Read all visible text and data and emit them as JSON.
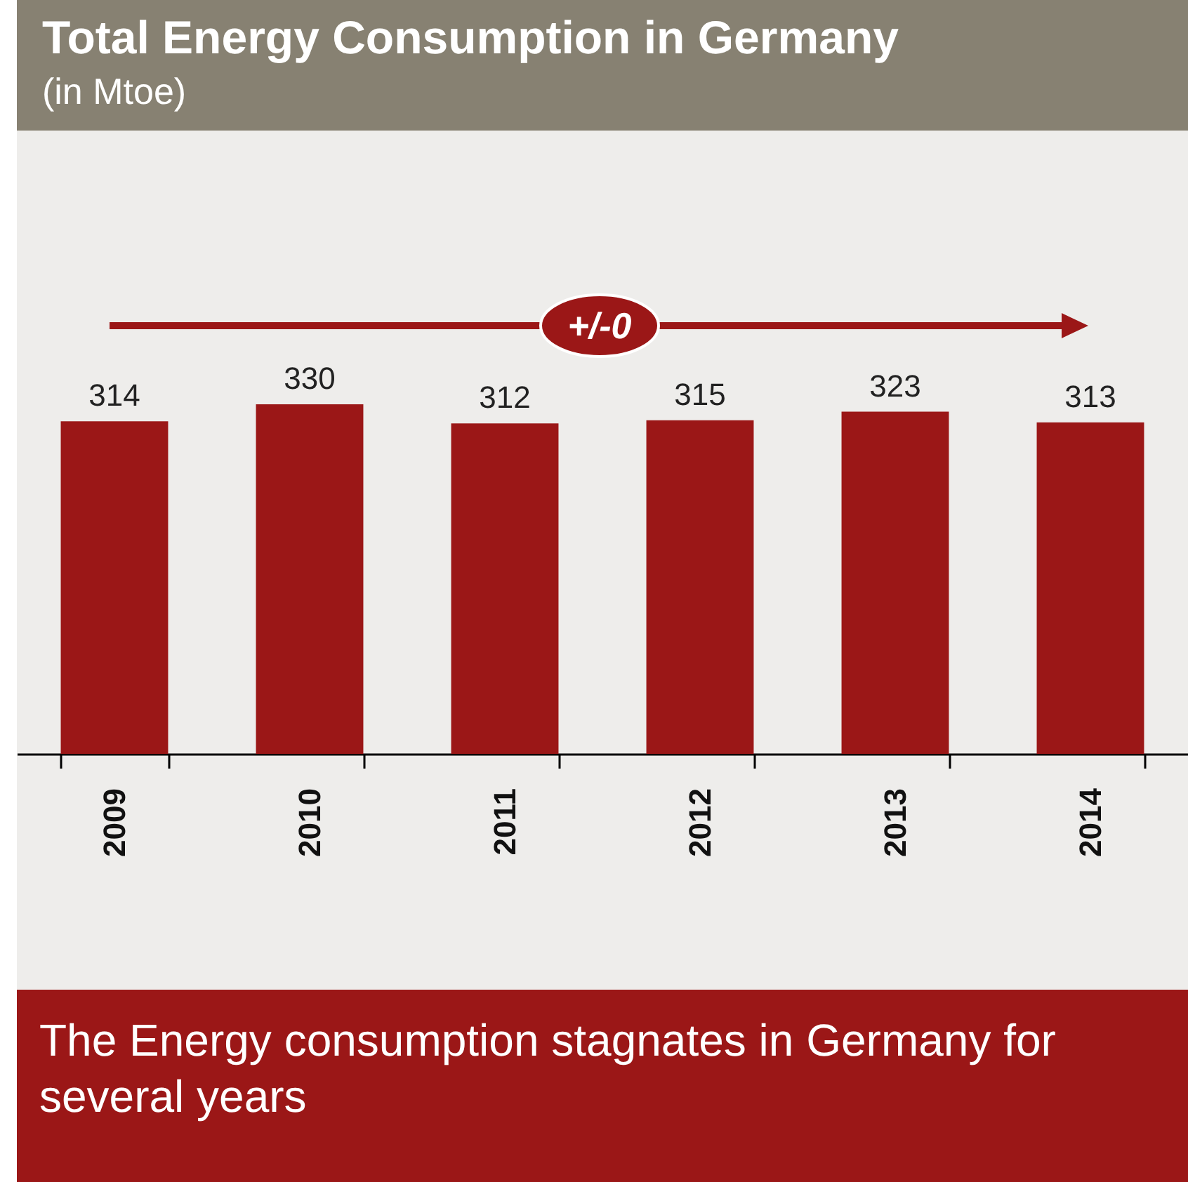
{
  "chart_data": {
    "type": "bar",
    "title": "Total Energy Consumption in Germany",
    "subtitle": "(in Mtoe)",
    "categories": [
      "2009",
      "2010",
      "2011",
      "2012",
      "2013",
      "2014"
    ],
    "values": [
      314,
      330,
      312,
      315,
      323,
      313
    ],
    "color": "#9b1717",
    "data_labels": true,
    "annotations": [
      "+/-0",
      "The Energy consumption stagnates in Germany for several years"
    ]
  }
}
